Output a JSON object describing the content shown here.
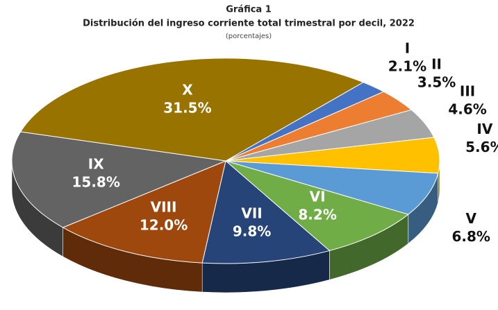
{
  "chart_data": {
    "type": "pie3d",
    "title": "Gráfica 1",
    "subtitle": "Distribución del ingreso corriente total trimestral por decil, 2022",
    "unit_note": "(porcentajes)",
    "categories": [
      "I",
      "II",
      "III",
      "IV",
      "V",
      "VI",
      "VII",
      "VIII",
      "IX",
      "X"
    ],
    "values": [
      2.1,
      3.5,
      4.6,
      5.6,
      6.8,
      8.2,
      9.8,
      12.0,
      15.8,
      31.5
    ],
    "value_labels": [
      "2.1%",
      "3.5%",
      "4.6%",
      "5.6%",
      "6.8%",
      "8.2%",
      "9.8%",
      "12.0%",
      "15.8%",
      "31.5%"
    ],
    "colors": [
      "#4472c4",
      "#ed7d31",
      "#a5a5a5",
      "#ffc000",
      "#5b9bd5",
      "#70ad47",
      "#264478",
      "#9e480e",
      "#636363",
      "#997300"
    ]
  }
}
